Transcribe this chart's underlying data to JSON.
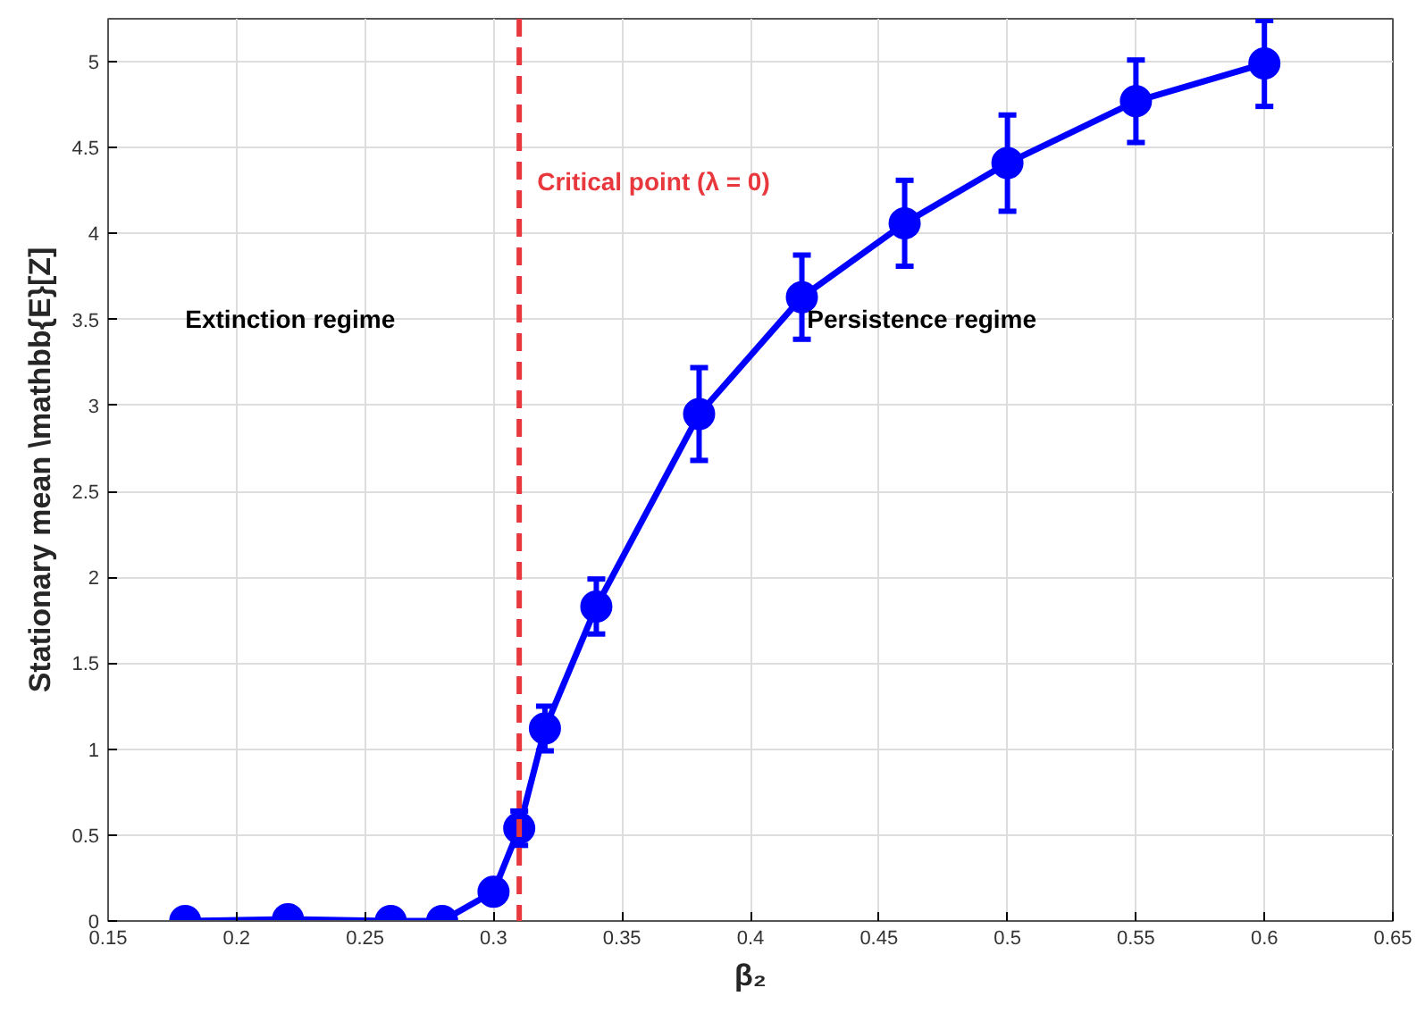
{
  "chart_data": {
    "type": "line",
    "xlabel": "β₂",
    "ylabel": "Stationary mean \\mathbb{E}[Z]",
    "x": [
      0.18,
      0.22,
      0.26,
      0.28,
      0.3,
      0.31,
      0.32,
      0.34,
      0.38,
      0.42,
      0.46,
      0.5,
      0.55,
      0.6
    ],
    "series": [
      {
        "color": "#0000ff",
        "values": [
          0.0,
          0.01,
          0.0,
          0.0,
          0.17,
          0.54,
          1.12,
          1.83,
          2.95,
          3.63,
          4.06,
          4.41,
          4.77,
          4.99
        ],
        "errors": [
          null,
          null,
          null,
          null,
          null,
          0.1,
          0.13,
          0.16,
          0.27,
          0.245,
          0.25,
          0.28,
          0.24,
          0.25
        ]
      }
    ],
    "xlim": [
      0.15,
      0.65
    ],
    "xticks": [
      0.15,
      0.2,
      0.25,
      0.3,
      0.35,
      0.4,
      0.45,
      0.5,
      0.55,
      0.6,
      0.65
    ],
    "ylim": [
      0,
      5.25
    ],
    "yticks": [
      0,
      0.5,
      1,
      1.5,
      2,
      2.5,
      3,
      3.5,
      4,
      4.5,
      5
    ],
    "ref_lines": [
      {
        "axis": "x",
        "value": 0.31,
        "label": "Critical point (λ = 0)",
        "color": "#e8383d",
        "line_style": "dashed"
      }
    ],
    "annotations": [
      "Extinction regime",
      "Persistence regime"
    ],
    "grid": true,
    "marker": "circle",
    "line_style": "solid"
  }
}
